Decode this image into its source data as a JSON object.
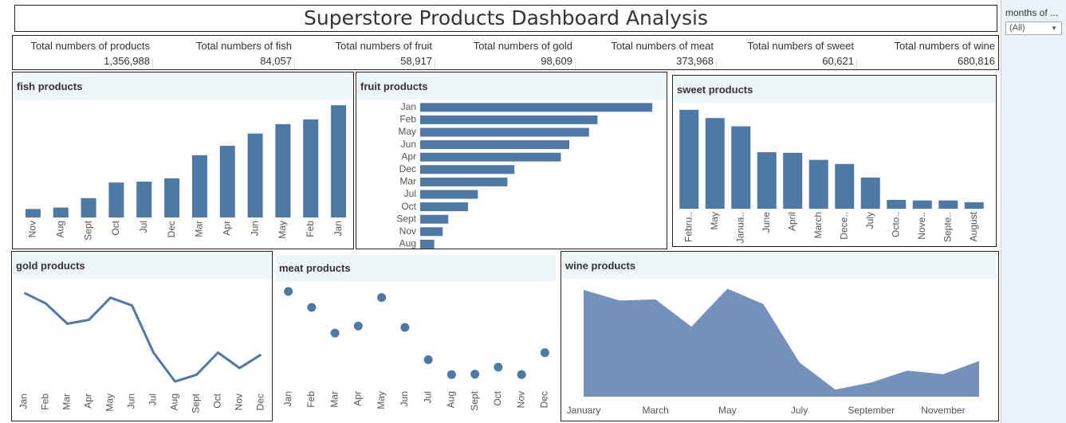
{
  "title": "Superstore Products Dashboard Analysis",
  "filter": {
    "label": "months of ...",
    "value": "(All)"
  },
  "kpis": [
    {
      "label": "Total numbers of products",
      "value": "1,356,988"
    },
    {
      "label": "Total numbers of fish",
      "value": "84,057"
    },
    {
      "label": "Total numbers of fruit",
      "value": "58,917"
    },
    {
      "label": "Total numbers of gold",
      "value": "98,609"
    },
    {
      "label": "Total numbers of meat",
      "value": "373,968"
    },
    {
      "label": "Total numbers of sweet",
      "value": "60,621"
    },
    {
      "label": "Total numbers of wine",
      "value": "680,816"
    }
  ],
  "colors": {
    "mark": "#4e79a7",
    "area": "#7391ba",
    "header": "#eff6fa",
    "sidebar": "#eaf3f8"
  },
  "chart_data": [
    {
      "id": "fish",
      "type": "bar",
      "title": "fish products",
      "categories": [
        "Nov",
        "Aug",
        "Sept",
        "Oct",
        "Jul",
        "Dec",
        "Mar",
        "Apr",
        "Jun",
        "May",
        "Feb",
        "Jan"
      ],
      "values": [
        900,
        1050,
        2050,
        3700,
        3800,
        4150,
        6600,
        7600,
        8900,
        9900,
        10400,
        11900
      ],
      "ylim": [
        0,
        12500
      ]
    },
    {
      "id": "fruit",
      "type": "bar",
      "orientation": "horizontal",
      "title": "fruit products",
      "categories": [
        "Jan",
        "Feb",
        "May",
        "Jun",
        "Apr",
        "Dec",
        "Mar",
        "Jul",
        "Oct",
        "Sept",
        "Nov",
        "Aug"
      ],
      "values": [
        8250,
        6300,
        6000,
        5300,
        5000,
        3350,
        3100,
        2050,
        1700,
        1000,
        800,
        500
      ],
      "xlim": [
        0,
        8500
      ]
    },
    {
      "id": "sweet",
      "type": "bar",
      "title": "sweet products",
      "categories": [
        "Febru..",
        "May",
        "Janua..",
        "June",
        "April",
        "March",
        "Dece..",
        "July",
        "Octo..",
        "Nove..",
        "Septe..",
        "August"
      ],
      "values": [
        8400,
        7700,
        7000,
        4800,
        4750,
        4150,
        3800,
        2650,
        750,
        700,
        700,
        550
      ],
      "ylim": [
        0,
        9000
      ]
    },
    {
      "id": "gold",
      "type": "line",
      "title": "gold products",
      "categories": [
        "Jan",
        "Feb",
        "Mar",
        "Apr",
        "May",
        "Jun",
        "Jul",
        "Aug",
        "Sept",
        "Oct",
        "Nov",
        "Dec"
      ],
      "values": [
        13200,
        12100,
        10000,
        10400,
        12700,
        11900,
        7000,
        4000,
        4700,
        7000,
        5400,
        6800
      ],
      "ylim": [
        3000,
        14000
      ]
    },
    {
      "id": "meat",
      "type": "scatter",
      "title": "meat products",
      "categories": [
        "Jan",
        "Feb",
        "Mar",
        "Apr",
        "May",
        "Jun",
        "Jul",
        "Aug",
        "Sept",
        "Oct",
        "Nov",
        "Dec"
      ],
      "values": [
        44800,
        41400,
        35900,
        37400,
        43500,
        37100,
        30200,
        27000,
        27100,
        28600,
        27000,
        31700
      ],
      "ylim": [
        25000,
        47000
      ]
    },
    {
      "id": "wine",
      "type": "area",
      "title": "wine products",
      "categories": [
        "January",
        "February",
        "March",
        "April",
        "May",
        "June",
        "July",
        "August",
        "September",
        "October",
        "November",
        "December"
      ],
      "tick_labels": [
        "January",
        "March",
        "May",
        "July",
        "September",
        "November"
      ],
      "values": [
        90000,
        81000,
        82000,
        59000,
        91000,
        78000,
        29000,
        6000,
        12000,
        22000,
        19000,
        30000
      ],
      "ylim": [
        0,
        100000
      ]
    }
  ]
}
